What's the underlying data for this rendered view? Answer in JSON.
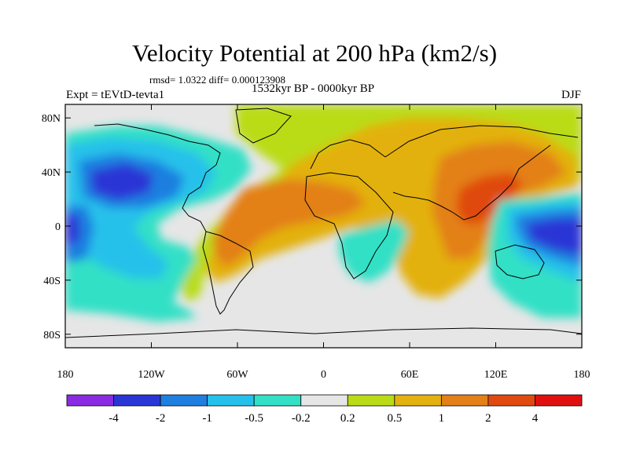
{
  "title": "Velocity Potential at 200 hPa (km2/s)",
  "stats_line": "rmsd= 1.0322 diff= 0.000123908",
  "period_line": "1532kyr BP - 0000kyr BP",
  "experiment_label": "Expt = tEVtD-tevta1",
  "season_label": "DJF",
  "lat_ticks": [
    "80N",
    "40N",
    "0",
    "40S",
    "80S"
  ],
  "lon_ticks": [
    "180",
    "120W",
    "60W",
    "0",
    "60E",
    "120E",
    "180"
  ],
  "colorbar": {
    "labels": [
      "-4",
      "-2",
      "-1",
      "-0.5",
      "-0.2",
      "0.2",
      "0.5",
      "1",
      "2",
      "4"
    ],
    "colors": [
      "#8a2be2",
      "#2a35d6",
      "#1f7fe0",
      "#26c1ea",
      "#33e0c6",
      "#e6e6e6",
      "#b9dc16",
      "#e3b110",
      "#e38017",
      "#e04a10",
      "#e01010"
    ]
  },
  "palette": {
    "land_outline": "#000000",
    "neutral": "#e6e6e6"
  }
}
